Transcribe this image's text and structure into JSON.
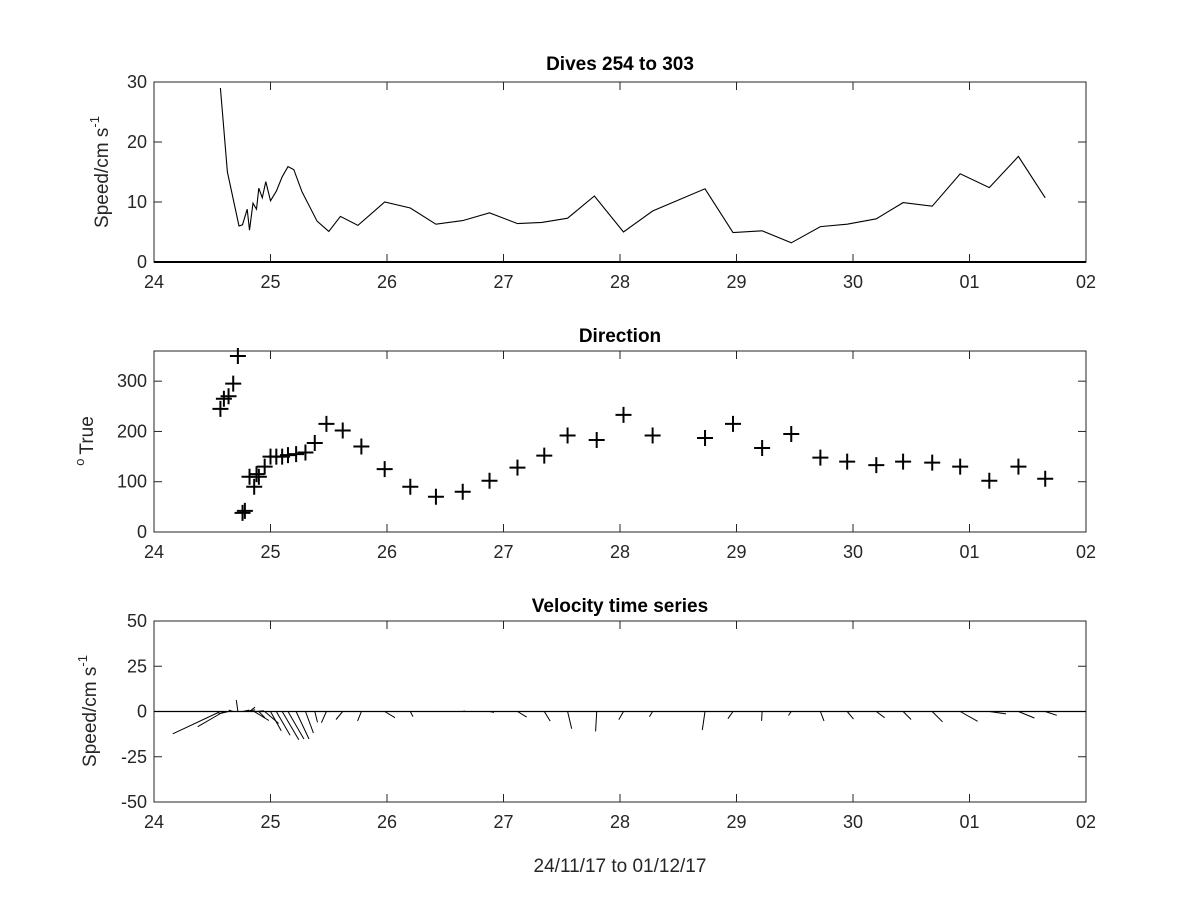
{
  "figure": {
    "xlabel": "24/11/17 to 01/12/17"
  },
  "x_ticks": [
    "24",
    "25",
    "26",
    "27",
    "28",
    "29",
    "30",
    "01",
    "02"
  ],
  "chart_data": [
    {
      "type": "line",
      "title": "Dives 254 to 303",
      "ylabel": "Speed/cm s",
      "ylabel_superscript": "-1",
      "xlim": [
        24,
        32
      ],
      "ylim": [
        0,
        30
      ],
      "yticks": [
        "0",
        "10",
        "20",
        "30"
      ],
      "baseline": 0,
      "x": [
        24.57,
        24.63,
        24.73,
        24.76,
        24.8,
        24.82,
        24.85,
        24.88,
        24.9,
        24.93,
        24.96,
        25.0,
        25.05,
        25.1,
        25.15,
        25.2,
        25.27,
        25.4,
        25.5,
        25.6,
        25.75,
        25.98,
        26.2,
        26.42,
        26.65,
        26.88,
        27.12,
        27.33,
        27.55,
        27.78,
        28.03,
        28.28,
        28.73,
        28.97,
        29.22,
        29.47,
        29.72,
        29.95,
        30.2,
        30.43,
        30.68,
        30.92,
        31.17,
        31.42,
        31.65
      ],
      "y": [
        29,
        15,
        6,
        6.2,
        8.8,
        5.3,
        9.8,
        8.8,
        12.3,
        10.7,
        13.4,
        10.2,
        11.8,
        14.2,
        15.9,
        15.4,
        11.7,
        6.8,
        5.1,
        7.6,
        6.1,
        10,
        9,
        6.3,
        6.9,
        8.2,
        6.4,
        6.6,
        7.3,
        11,
        5,
        8.5,
        12.2,
        4.9,
        5.2,
        3.2,
        5.9,
        6.3,
        7.2,
        9.9,
        9.3,
        14.7,
        12.4,
        17.6,
        10.7
      ]
    },
    {
      "type": "scatter",
      "title": "Direction",
      "ylabel": "True",
      "ylabel_superscript": "o",
      "marker": "+",
      "xlim": [
        24,
        32
      ],
      "ylim": [
        0,
        360
      ],
      "yticks": [
        "0",
        "100",
        "200",
        "300"
      ],
      "x": [
        24.57,
        24.6,
        24.64,
        24.68,
        24.72,
        24.76,
        24.78,
        24.82,
        24.86,
        24.88,
        24.9,
        24.95,
        25.0,
        25.05,
        25.1,
        25.15,
        25.22,
        25.3,
        25.38,
        25.48,
        25.62,
        25.78,
        25.98,
        26.2,
        26.42,
        26.65,
        26.88,
        27.12,
        27.35,
        27.55,
        27.8,
        28.03,
        28.28,
        28.73,
        28.97,
        29.22,
        29.47,
        29.72,
        29.95,
        30.2,
        30.43,
        30.68,
        30.92,
        31.17,
        31.42,
        31.65
      ],
      "y": [
        245,
        265,
        270,
        295,
        350,
        38,
        42,
        110,
        90,
        115,
        110,
        130,
        150,
        150,
        150,
        153,
        155,
        158,
        177,
        215,
        202,
        170,
        125,
        90,
        70,
        80,
        102,
        128,
        152,
        192,
        183,
        233,
        192,
        187,
        215,
        167,
        195,
        148,
        140,
        133,
        140,
        138,
        130,
        102,
        130,
        106
      ]
    },
    {
      "type": "quiver",
      "title": "Velocity time series",
      "ylabel": "Speed/cm s",
      "ylabel_superscript": "-1",
      "xlim": [
        24,
        32
      ],
      "ylim": [
        -50,
        50
      ],
      "yticks": [
        "-50",
        "-25",
        "0",
        "25",
        "50"
      ],
      "baseline": 0,
      "x": [
        24.57,
        24.6,
        24.64,
        24.68,
        24.72,
        24.76,
        24.78,
        24.82,
        24.86,
        24.88,
        24.9,
        24.95,
        25.0,
        25.05,
        25.1,
        25.15,
        25.22,
        25.3,
        25.38,
        25.48,
        25.62,
        25.78,
        25.98,
        26.2,
        26.42,
        26.65,
        26.88,
        27.12,
        27.35,
        27.55,
        27.8,
        28.03,
        28.28,
        28.73,
        28.97,
        29.22,
        29.47,
        29.72,
        29.95,
        30.2,
        30.43,
        30.68,
        30.92,
        31.17,
        31.42,
        31.65
      ],
      "u": [
        -26.3,
        -14.5,
        -5.6,
        -2.5,
        -0.9,
        3.7,
        5.7,
        3.0,
        8.1,
        4.0,
        3.4,
        7.7,
        5.9,
        7.6,
        9.2,
        8.8,
        7.1,
        4.4,
        1.5,
        -2.8,
        -3.7,
        -2.1,
        5.7,
        1.5,
        0.4,
        1.2,
        2.5,
        5.1,
        3.3,
        2.3,
        -0.6,
        -2.6,
        -1.8,
        -1.5,
        -2.8,
        -0.3,
        -1.6,
        2.0,
        3.5,
        4.6,
        4.4,
        5.7,
        9.6,
        9.2,
        8.8,
        6.4
      ],
      "v": [
        -12.3,
        -8.4,
        -1.3,
        0.8,
        6.3,
        0.8,
        0.9,
        2.4,
        -5.0,
        0.4,
        -3.5,
        -6.6,
        -10.6,
        -13.1,
        -15.6,
        -15.2,
        -15.2,
        -11.8,
        -5.9,
        -6.2,
        -4.4,
        -5.2,
        -3.4,
        -2.9,
        0.1,
        0.3,
        -0.5,
        -3.1,
        -5.3,
        -9.5,
        -11.0,
        -4.5,
        -2.9,
        -10.2,
        -4.0,
        -5.2,
        -2.2,
        -5.2,
        -4.2,
        -3.4,
        -4.4,
        -5.7,
        -5.4,
        -1.3,
        -3.6,
        -2.1
      ]
    }
  ]
}
